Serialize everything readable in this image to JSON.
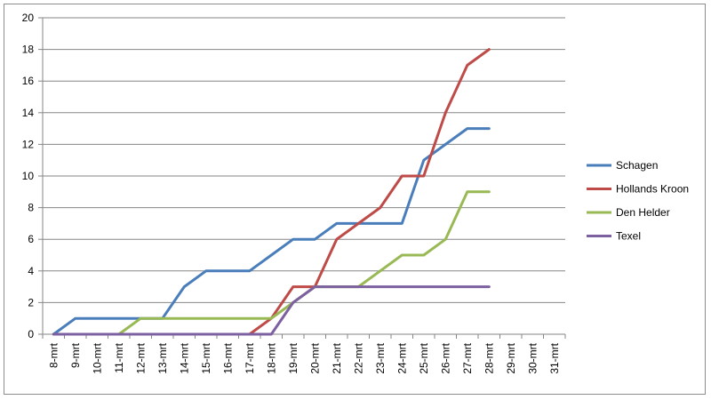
{
  "chart_data": {
    "type": "line",
    "categories": [
      "8-mrt",
      "9-mrt",
      "10-mrt",
      "11-mrt",
      "12-mrt",
      "13-mrt",
      "14-mrt",
      "15-mrt",
      "16-mrt",
      "17-mrt",
      "18-mrt",
      "19-mrt",
      "20-mrt",
      "21-mrt",
      "22-mrt",
      "23-mrt",
      "24-mrt",
      "25-mrt",
      "26-mrt",
      "27-mrt",
      "28-mrt",
      "29-mrt",
      "30-mrt",
      "31-mrt"
    ],
    "ylim": [
      0,
      20
    ],
    "yticks": [
      0,
      2,
      4,
      6,
      8,
      10,
      12,
      14,
      16,
      18,
      20
    ],
    "grid": true,
    "legend_position": "right",
    "series": [
      {
        "name": "Schagen",
        "color": "#4a7ebb",
        "values": [
          0,
          1,
          1,
          1,
          1,
          1,
          3,
          4,
          4,
          4,
          5,
          6,
          6,
          7,
          7,
          7,
          7,
          11,
          12,
          13,
          13,
          null,
          null,
          null
        ]
      },
      {
        "name": "Hollands Kroon",
        "color": "#be4b48",
        "values": [
          0,
          0,
          0,
          0,
          0,
          0,
          0,
          0,
          0,
          0,
          1,
          3,
          3,
          6,
          7,
          8,
          10,
          10,
          14,
          17,
          18,
          null,
          null,
          null
        ]
      },
      {
        "name": "Den Helder",
        "color": "#98b954",
        "values": [
          0,
          0,
          0,
          0,
          1,
          1,
          1,
          1,
          1,
          1,
          1,
          2,
          3,
          3,
          3,
          4,
          5,
          5,
          6,
          9,
          9,
          null,
          null,
          null
        ]
      },
      {
        "name": "Texel",
        "color": "#7d60a0",
        "values": [
          0,
          0,
          0,
          0,
          0,
          0,
          0,
          0,
          0,
          0,
          0,
          2,
          3,
          3,
          3,
          3,
          3,
          3,
          3,
          3,
          3,
          null,
          null,
          null
        ]
      }
    ]
  }
}
